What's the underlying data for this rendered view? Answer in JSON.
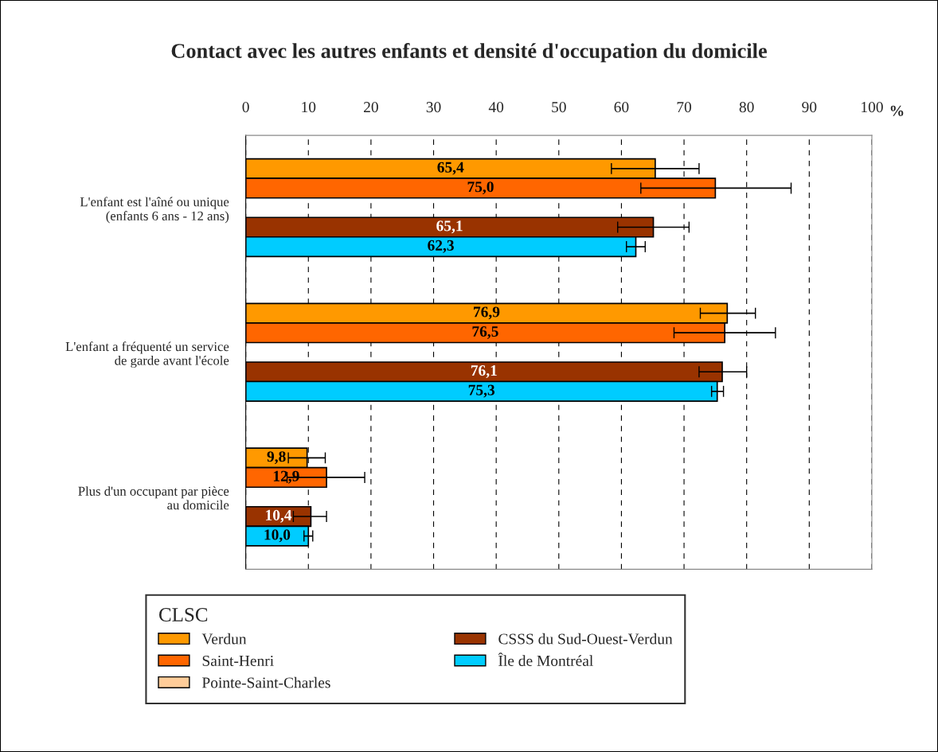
{
  "chart_data": {
    "type": "bar",
    "orientation": "horizontal",
    "title": "Contact avec les autres enfants et densité d'occupation du domicile",
    "xlabel": "%",
    "categories": [
      "L'enfant est l'aîné ou unique\n(enfants 6 ans - 12 ans)",
      "L'enfant a fréquenté un service\nde garde avant l'école",
      "Plus d'un occupant par pièce\nau domicile"
    ],
    "series": [
      {
        "name": "Verdun",
        "color": "#ff9900",
        "values": [
          65.4,
          76.9,
          9.8
        ],
        "value_labels": [
          "65,4",
          "76,9",
          "9,8"
        ],
        "errors": [
          [
            58.4,
            72.4
          ],
          [
            72.6,
            81.4
          ],
          [
            6.8,
            12.7
          ]
        ]
      },
      {
        "name": "Saint-Henri",
        "color": "#ff6600",
        "values": [
          75.0,
          76.5,
          12.9
        ],
        "value_labels": [
          "75,0",
          "76,5",
          "12,9"
        ],
        "errors": [
          [
            63.1,
            87.1
          ],
          [
            68.4,
            84.6
          ],
          [
            6.6,
            19.0
          ]
        ]
      },
      {
        "name": "Pointe-Saint-Charles",
        "color": "#ffcc99",
        "values": [
          null,
          null,
          null
        ]
      },
      {
        "name": "CSSS du Sud-Ouest-Verdun",
        "color": "#993300",
        "values": [
          65.1,
          76.1,
          10.4
        ],
        "value_labels": [
          "65,1",
          "76,1",
          "10,4"
        ],
        "errors": [
          [
            59.4,
            70.8
          ],
          [
            72.4,
            80.0
          ],
          [
            7.6,
            12.9
          ]
        ]
      },
      {
        "name": "Île de Montréal",
        "color": "#00ccff",
        "values": [
          62.3,
          75.3,
          10.0
        ],
        "value_labels": [
          "62,3",
          "75,3",
          "10,0"
        ],
        "errors": [
          [
            60.8,
            63.8
          ],
          [
            74.4,
            76.3
          ],
          [
            9.3,
            10.7
          ]
        ]
      }
    ],
    "xlim": [
      0,
      100
    ],
    "xticks": [
      0,
      10,
      20,
      30,
      40,
      50,
      60,
      70,
      80,
      90,
      100
    ],
    "grid": "x",
    "legend": "bottom",
    "legend_title": "CLSC"
  }
}
